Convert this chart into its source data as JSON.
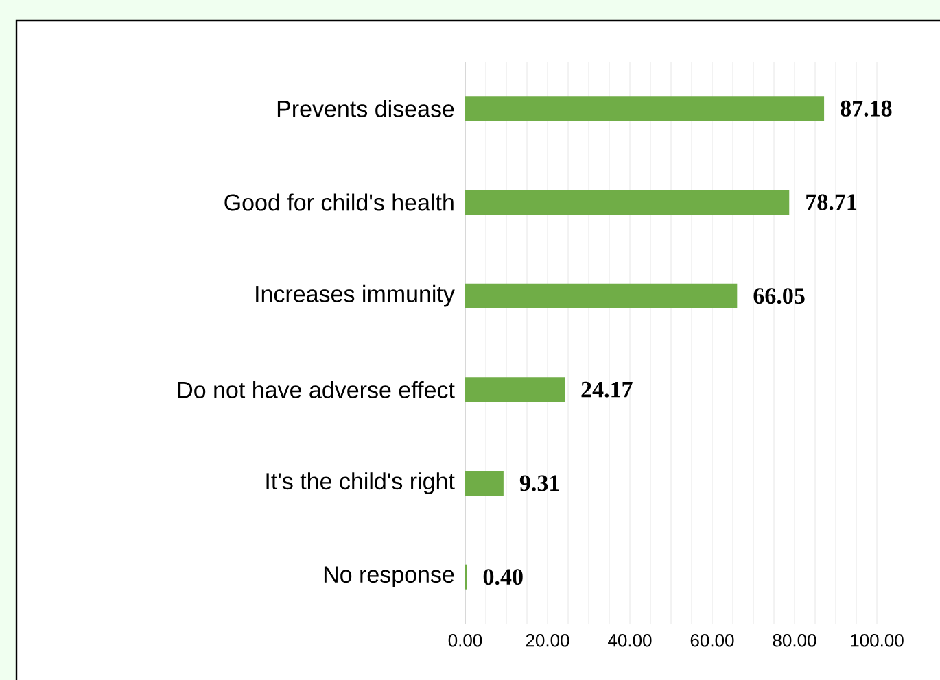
{
  "chart_data": {
    "type": "bar",
    "orientation": "horizontal",
    "categories": [
      "Prevents disease",
      "Good for child's health",
      "Increases immunity",
      "Do not have adverse effect",
      "It's the child's right",
      "No response"
    ],
    "values": [
      87.18,
      78.71,
      66.05,
      24.17,
      9.31,
      0.4
    ],
    "value_labels": [
      "87.18",
      "78.71",
      "66.05",
      "24.17",
      "9.31",
      "0.40"
    ],
    "color": "#70ad47",
    "xlim": [
      0,
      100
    ],
    "xticks": [
      {
        "value": 0,
        "label": "0.00"
      },
      {
        "value": 20,
        "label": "20.00"
      },
      {
        "value": 40,
        "label": "40.00"
      },
      {
        "value": 60,
        "label": "60.00"
      },
      {
        "value": 80,
        "label": "80.00"
      },
      {
        "value": 100,
        "label": "100.00"
      }
    ],
    "grid": "x"
  }
}
